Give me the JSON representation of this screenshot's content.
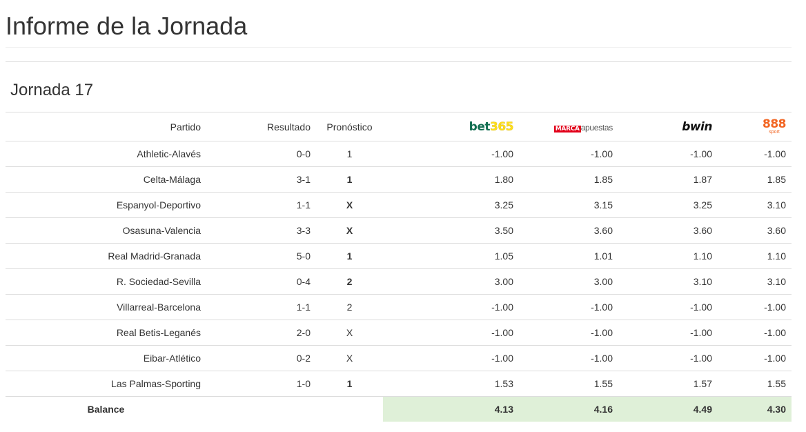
{
  "page": {
    "title": "Informe de la Jornada"
  },
  "section": {
    "title": "Jornada 17"
  },
  "table": {
    "headers": {
      "match": "Partido",
      "result": "Resultado",
      "prediction": "Pronóstico"
    },
    "bookmakers": [
      {
        "name": "bet365",
        "logo_text_a": "bet",
        "logo_text_b": "365",
        "color": "#126e51"
      },
      {
        "name": "marcaapuestas",
        "logo_text_a": "MARCA",
        "logo_text_b": "apuestas",
        "color": "#e2001a"
      },
      {
        "name": "bwin",
        "logo_text_a": "bwin",
        "color": "#111111"
      },
      {
        "name": "888sport",
        "logo_text_a": "888",
        "logo_text_b": "sport",
        "color": "#f26522"
      }
    ],
    "rows": [
      {
        "match": "Athletic-Alavés",
        "result": "0-0",
        "prediction": "1",
        "hit": false,
        "odds": [
          "-1.00",
          "-1.00",
          "-1.00",
          "-1.00"
        ]
      },
      {
        "match": "Celta-Málaga",
        "result": "3-1",
        "prediction": "1",
        "hit": true,
        "odds": [
          "1.80",
          "1.85",
          "1.87",
          "1.85"
        ]
      },
      {
        "match": "Espanyol-Deportivo",
        "result": "1-1",
        "prediction": "X",
        "hit": true,
        "odds": [
          "3.25",
          "3.15",
          "3.25",
          "3.10"
        ]
      },
      {
        "match": "Osasuna-Valencia",
        "result": "3-3",
        "prediction": "X",
        "hit": true,
        "odds": [
          "3.50",
          "3.60",
          "3.60",
          "3.60"
        ]
      },
      {
        "match": "Real Madrid-Granada",
        "result": "5-0",
        "prediction": "1",
        "hit": true,
        "odds": [
          "1.05",
          "1.01",
          "1.10",
          "1.10"
        ]
      },
      {
        "match": "R. Sociedad-Sevilla",
        "result": "0-4",
        "prediction": "2",
        "hit": true,
        "odds": [
          "3.00",
          "3.00",
          "3.10",
          "3.10"
        ]
      },
      {
        "match": "Villarreal-Barcelona",
        "result": "1-1",
        "prediction": "2",
        "hit": false,
        "odds": [
          "-1.00",
          "-1.00",
          "-1.00",
          "-1.00"
        ]
      },
      {
        "match": "Real Betis-Leganés",
        "result": "2-0",
        "prediction": "X",
        "hit": false,
        "odds": [
          "-1.00",
          "-1.00",
          "-1.00",
          "-1.00"
        ]
      },
      {
        "match": "Eibar-Atlético",
        "result": "0-2",
        "prediction": "X",
        "hit": false,
        "odds": [
          "-1.00",
          "-1.00",
          "-1.00",
          "-1.00"
        ]
      },
      {
        "match": "Las Palmas-Sporting",
        "result": "1-0",
        "prediction": "1",
        "hit": true,
        "odds": [
          "1.53",
          "1.55",
          "1.57",
          "1.55"
        ]
      }
    ],
    "balance": {
      "label": "Balance",
      "values": [
        "4.13",
        "4.16",
        "4.49",
        "4.30"
      ],
      "highlight_color": "#dff0d8"
    }
  }
}
